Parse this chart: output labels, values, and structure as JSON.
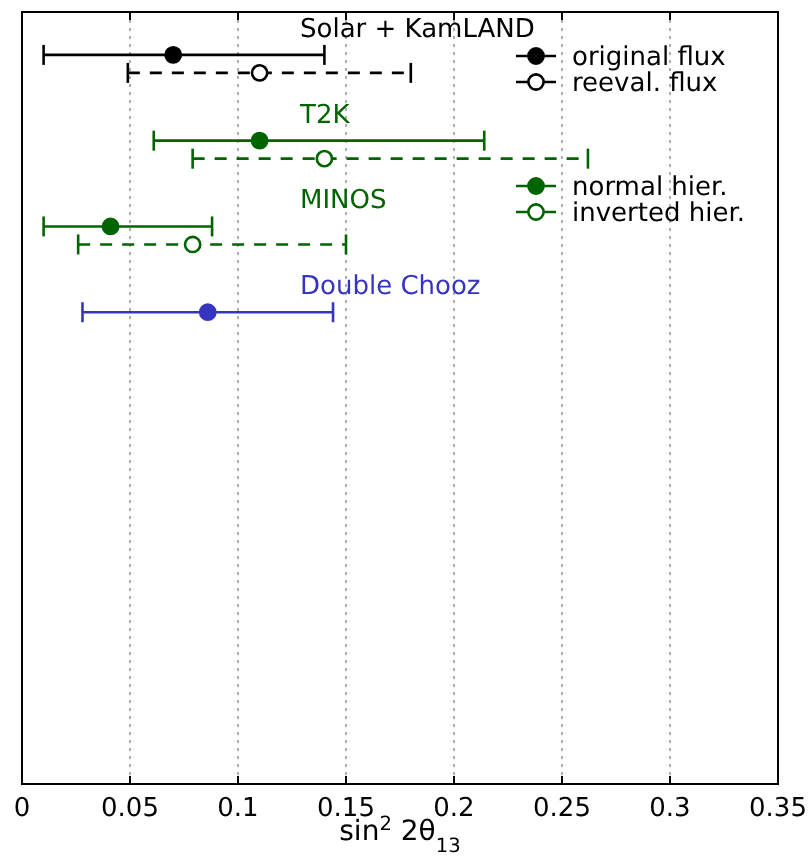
{
  "chart_data": {
    "type": "scatter",
    "orientation": "horizontal",
    "xlabel": "sin$^{2}$ 2θ$_{13}$",
    "categories": [
      null,
      null,
      null,
      null,
      null,
      null,
      null,
      null,
      null
    ],
    "annotations": [
      "Solar + KamLAND",
      "T2K",
      "MINOS",
      "Double Chooz"
    ],
    "series": [
      {
        "name": "original flux",
        "color": "#000000",
        "line_style": "solid",
        "values": [
          0.07,
          null,
          null,
          null,
          null,
          null,
          null,
          null,
          null
        ],
        "errors": [
          [
            0.01,
            0.14
          ],
          null,
          null,
          null,
          null,
          null,
          null,
          null,
          null
        ]
      },
      {
        "name": "reeval. flux",
        "color": "#000000",
        "line_style": "dashed",
        "values": [
          0.11,
          null,
          null,
          null,
          null,
          null,
          null,
          null,
          null
        ],
        "errors": [
          [
            0.049,
            0.18
          ],
          null,
          null,
          null,
          null,
          null,
          null,
          null,
          null
        ]
      },
      {
        "name": "normal hier.",
        "color": "#006400",
        "line_style": "solid",
        "values": [
          null,
          0.11,
          0.041,
          null,
          null,
          null,
          null,
          null,
          null
        ],
        "errors": [
          null,
          [
            0.061,
            0.214
          ],
          [
            0.01,
            0.088
          ],
          null,
          null,
          null,
          null,
          null,
          null
        ]
      },
      {
        "name": "inverted hier.",
        "color": "#006400",
        "line_style": "dashed",
        "values": [
          null,
          0.14,
          0.079,
          null,
          null,
          null,
          null,
          null,
          null
        ],
        "errors": [
          null,
          [
            0.079,
            0.262
          ],
          [
            0.026,
            0.15
          ],
          null,
          null,
          null,
          null,
          null,
          null
        ]
      },
      {
        "color": "#3535c0",
        "line_style": "solid",
        "values": [
          null,
          null,
          null,
          0.086,
          null,
          null,
          null,
          null,
          null
        ],
        "errors": [
          null,
          null,
          null,
          [
            0.028,
            0.144
          ],
          null,
          null,
          null,
          null,
          null
        ]
      }
    ],
    "xlim": [
      0,
      0.35
    ],
    "xticks": [
      0,
      0.05,
      0.1,
      0.15,
      0.2,
      0.25,
      0.3,
      0.35
    ],
    "grid": "x",
    "legend": "top right",
    "marker": "circle"
  }
}
